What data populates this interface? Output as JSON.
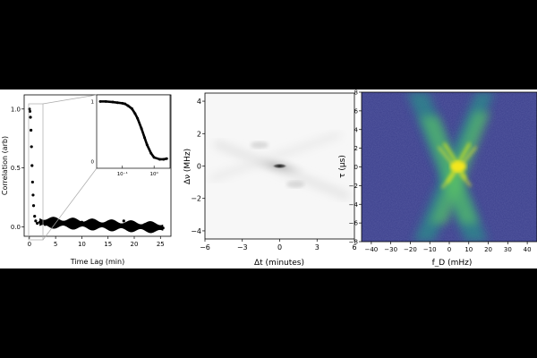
{
  "chart_data": [
    {
      "type": "scatter",
      "panel": "autocorrelation",
      "xlabel": "Time Lag (min)",
      "ylabel": "Correlation (arb)",
      "xlim": [
        -1,
        27
      ],
      "ylim": [
        -0.08,
        1.12
      ],
      "x_ticks": [
        "0",
        "5",
        "10",
        "15",
        "20",
        "25"
      ],
      "y_ticks": [
        "0.0",
        "0.5",
        "1.0"
      ],
      "series": [
        {
          "x": [
            0,
            0.1,
            0.2,
            0.3,
            0.4,
            0.5,
            0.6,
            0.7,
            0.8,
            1.0,
            1.2,
            1.5,
            2,
            3,
            5,
            8,
            10,
            12,
            15,
            18,
            20,
            22,
            24,
            25.5
          ],
          "y": [
            1.0,
            0.98,
            0.93,
            0.82,
            0.68,
            0.52,
            0.38,
            0.27,
            0.18,
            0.09,
            0.05,
            0.03,
            0.04,
            0.02,
            0.05,
            0.05,
            0.04,
            0.03,
            0.04,
            0.05,
            0.03,
            0.02,
            0.0,
            -0.01
          ]
        }
      ],
      "inset": {
        "xscale": "log",
        "x_ticks": [
          "10⁻¹",
          "10⁰"
        ],
        "y_ticks": [
          "1",
          "0"
        ],
        "x": [
          0.02,
          0.03,
          0.05,
          0.07,
          0.1,
          0.12,
          0.15,
          0.2,
          0.25,
          0.3,
          0.4,
          0.5,
          0.6,
          0.8,
          1.0,
          1.5,
          2.0,
          2.5
        ],
        "y": [
          1.0,
          1.0,
          0.99,
          0.98,
          0.97,
          0.96,
          0.93,
          0.88,
          0.8,
          0.72,
          0.55,
          0.4,
          0.28,
          0.14,
          0.07,
          0.04,
          0.04,
          0.05
        ]
      },
      "grid": false
    },
    {
      "type": "heatmap",
      "panel": "2d-autocorrelation",
      "xlabel": "Δt (minutes)",
      "ylabel": "Δν (MHz)",
      "xlim": [
        -6,
        6
      ],
      "ylim": [
        -4.5,
        4.5
      ],
      "x_ticks": [
        "−6",
        "−3",
        "0",
        "3",
        "6"
      ],
      "y_ticks": [
        "−4",
        "−2",
        "0",
        "2",
        "4"
      ],
      "colormap": "#000000",
      "peak_center": [
        0,
        0
      ]
    },
    {
      "type": "heatmap",
      "panel": "secondary-spectrum",
      "xlabel": "f_D (mHz)",
      "ylabel": "τ (μs)",
      "xlim": [
        -45,
        45
      ],
      "ylim": [
        -8,
        8
      ],
      "x_ticks": [
        "−40",
        "−30",
        "−20",
        "−10",
        "0",
        "10",
        "20",
        "30",
        "40"
      ],
      "y_ticks": [
        "−8",
        "−6",
        "−4",
        "−2",
        "0",
        "2",
        "4",
        "6",
        "8"
      ],
      "colormap": "viridis",
      "colors": {
        "low": "#3b3f8c",
        "mid": "#2a8c8a",
        "high": "#f4e61e"
      }
    }
  ]
}
